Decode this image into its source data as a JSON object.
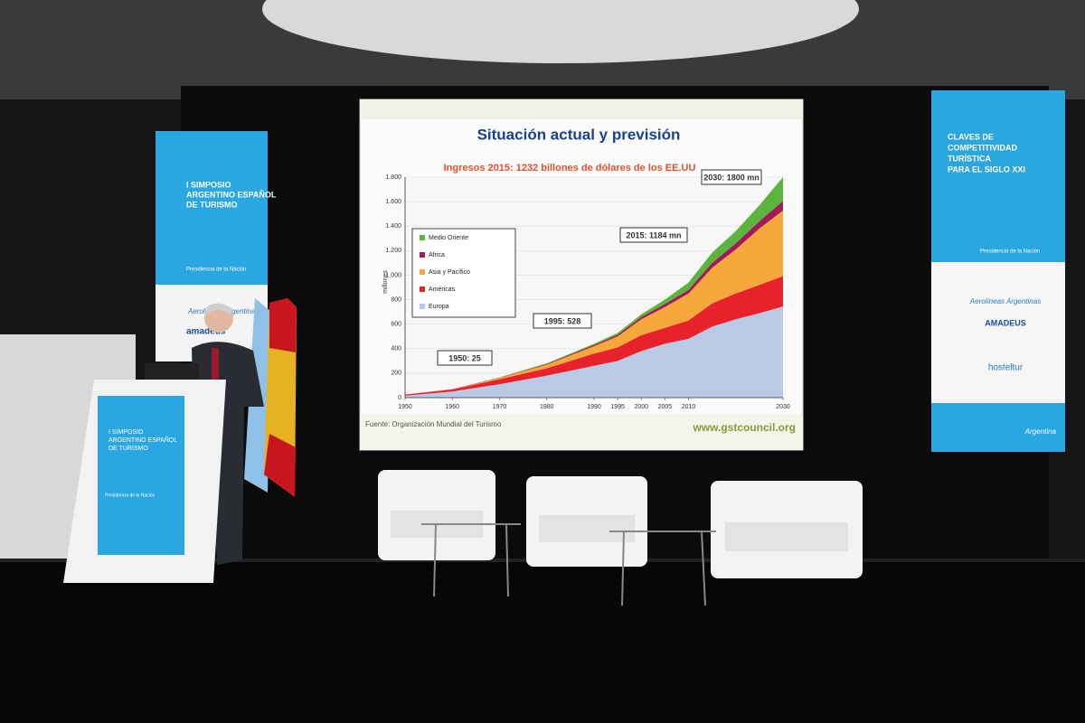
{
  "chart_data": {
    "type": "stacked-area",
    "title": "Situación actual y previsión",
    "subtitle": "Ingresos 2015: 1232 billones de dólares de los EE.UU",
    "y_label": "millones",
    "source": "Fuente: Organización Mundial del Turismo",
    "url": "www.gstcouncil.org",
    "annotations": [
      "1950: 25",
      "1995: 528",
      "2015: 1184 mn",
      "2030: 1800 mn"
    ],
    "x": [
      1950,
      1960,
      1970,
      1980,
      1990,
      1995,
      2000,
      2005,
      2010,
      2015,
      2020,
      2025,
      2030
    ],
    "xlim": [
      1950,
      2030
    ],
    "xticks": [
      1950,
      1960,
      1970,
      1980,
      1990,
      1995,
      2000,
      2005,
      2010,
      2030
    ],
    "ylim": [
      0,
      1800
    ],
    "yticks": [
      0,
      200,
      400,
      600,
      800,
      {
        "value": 1000,
        "label": "1.000"
      },
      {
        "value": 1200,
        "label": "1.200"
      },
      {
        "value": 1400,
        "label": "1.400"
      },
      {
        "value": 1600,
        "label": "1.600"
      },
      {
        "value": 1800,
        "label": "1.800"
      }
    ],
    "grid": true,
    "series": [
      {
        "name": "Europa",
        "color": "#b9c9e6",
        "values": [
          17,
          50,
          110,
          180,
          260,
          300,
          380,
          440,
          480,
          580,
          640,
          690,
          744
        ]
      },
      {
        "name": "Américas",
        "color": "#e8222b",
        "values": [
          8,
          17,
          40,
          60,
          100,
          110,
          130,
          130,
          150,
          190,
          210,
          230,
          248
        ]
      },
      {
        "name": "Asia y Pacífico",
        "color": "#f7a83c",
        "values": [
          0,
          2,
          10,
          30,
          60,
          90,
          130,
          170,
          220,
          290,
          360,
          460,
          535
        ]
      },
      {
        "name": "Africa",
        "color": "#a3195b",
        "values": [
          0,
          1,
          3,
          6,
          10,
          14,
          18,
          25,
          30,
          40,
          50,
          60,
          78
        ]
      },
      {
        "name": "Medio Oriente",
        "color": "#5bb43d",
        "values": [
          0,
          0,
          2,
          4,
          10,
          14,
          22,
          35,
          60,
          84,
          100,
          130,
          195
        ]
      }
    ]
  },
  "left_banner": {
    "lines": [
      "I SIMPOSIO",
      "ARGENTINO ESPAÑOL",
      "DE TURISMO"
    ],
    "org": "Presidencia de la Nación",
    "sponsors": [
      "Aerolíneas Argentinas",
      "amadeus"
    ]
  },
  "right_banner": {
    "lines": [
      "CLAVES DE",
      "COMPETITIVIDAD",
      "TURÍSTICA",
      "PARA EL SIGLO XXI"
    ],
    "org": "Presidencia de la Nación",
    "sponsors": [
      "Aerolíneas Argentinas",
      "AMADEUS",
      "hosteltur"
    ],
    "footer": "Argentina"
  },
  "podium": {
    "lines": [
      "I SIMPOSIO",
      "ARGENTINO ESPAÑOL",
      "DE TURISMO"
    ],
    "org": "Presidencia de la Nación"
  }
}
